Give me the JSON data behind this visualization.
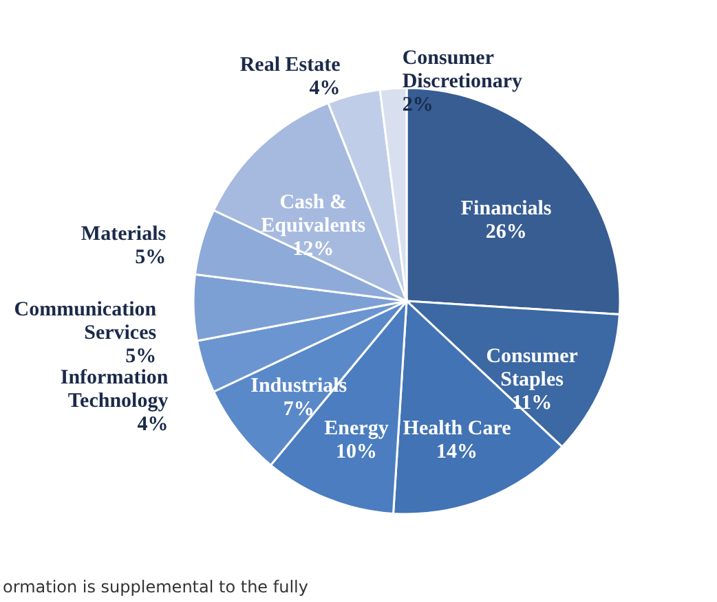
{
  "chart_data": {
    "type": "pie",
    "categories": [
      "Financials",
      "Consumer Staples",
      "Health Care",
      "Energy",
      "Industrials",
      "Information Technology",
      "Communication Services",
      "Materials",
      "Cash & Equivalents",
      "Real Estate",
      "Consumer Discretionary"
    ],
    "values": [
      26,
      11,
      14,
      10,
      7,
      4,
      5,
      5,
      12,
      4,
      2
    ],
    "value_labels": [
      "26%",
      "11%",
      "14%",
      "10%",
      "7%",
      "4%",
      "5%",
      "5%",
      "12%",
      "4%",
      "2%"
    ],
    "colors": [
      "#375d93",
      "#3c68a4",
      "#4273b4",
      "#4b7dc0",
      "#5a89c9",
      "#6a95d0",
      "#7c9fd4",
      "#8eaad8",
      "#a6badf",
      "#c0cde8",
      "#d8e0f0"
    ],
    "annotations": [
      "ormation is supplemental to the fully"
    ]
  }
}
